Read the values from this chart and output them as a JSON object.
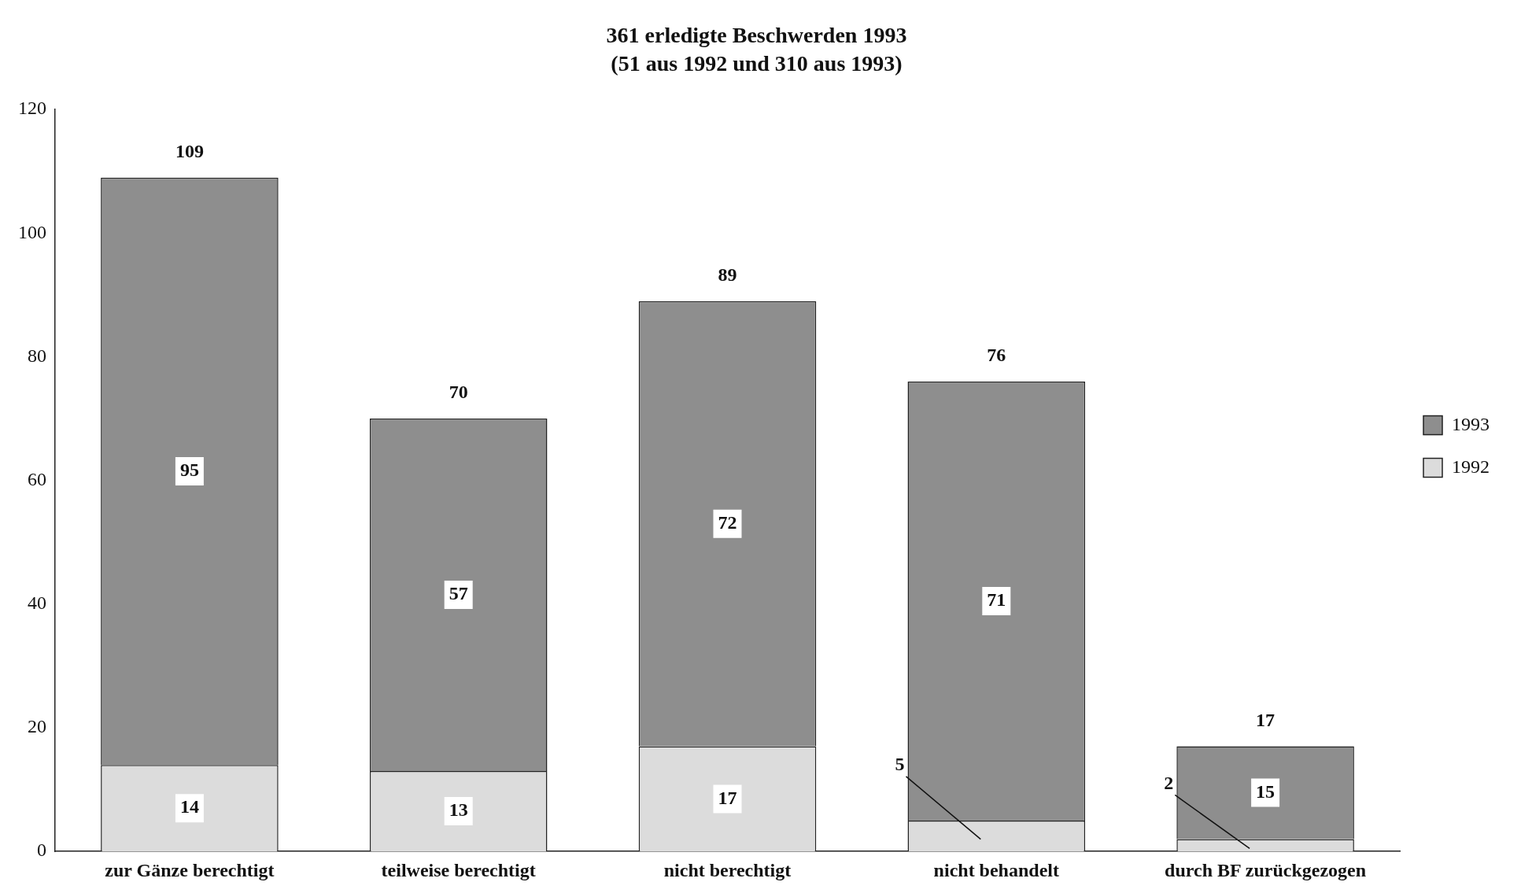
{
  "chart_data": {
    "type": "bar",
    "title": "361 erledigte Beschwerden 1993",
    "subtitle": "(51 aus 1992 und 310 aus 1993)",
    "categories": [
      "zur Gänze berechtigt",
      "teilweise berechtigt",
      "nicht berechtigt",
      "nicht behandelt",
      "durch BF zurückgezogen"
    ],
    "series": [
      {
        "name": "1992",
        "color": "#dcdcdc",
        "values": [
          14,
          13,
          17,
          5,
          2
        ]
      },
      {
        "name": "1993",
        "color": "#8e8e8e",
        "values": [
          95,
          57,
          72,
          71,
          15
        ]
      }
    ],
    "stacked": true,
    "ylim": [
      0,
      120
    ],
    "yticks": [
      0,
      20,
      40,
      60,
      80,
      100,
      120
    ],
    "grid": false,
    "legend": "right",
    "data_labels": true,
    "totals": [
      "109",
      "70",
      "89",
      "76",
      "17"
    ]
  }
}
